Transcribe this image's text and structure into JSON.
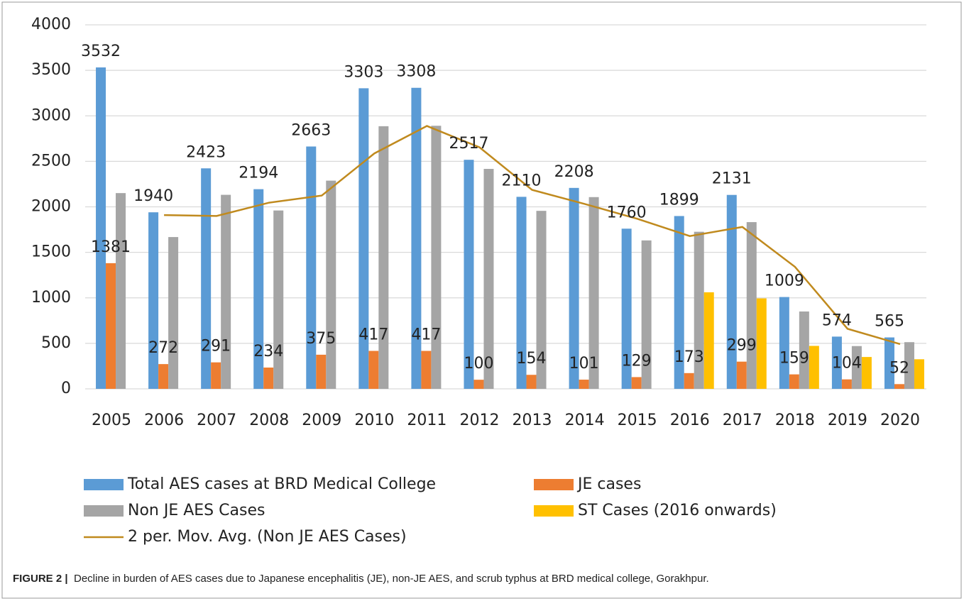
{
  "chart_data": {
    "type": "bar",
    "categories": [
      "2005",
      "2006",
      "2007",
      "2008",
      "2009",
      "2010",
      "2011",
      "2012",
      "2013",
      "2014",
      "2015",
      "2016",
      "2017",
      "2018",
      "2019",
      "2020"
    ],
    "series": [
      {
        "name": "Total AES cases at BRD Medical College",
        "color": "#5b9bd5",
        "values": [
          3532,
          1940,
          2423,
          2194,
          2663,
          3303,
          3308,
          2517,
          2110,
          2208,
          1760,
          1899,
          2131,
          1009,
          574,
          565
        ],
        "labels": true
      },
      {
        "name": "JE cases",
        "color": "#ed7d31",
        "values": [
          1381,
          272,
          291,
          234,
          375,
          417,
          417,
          100,
          154,
          101,
          129,
          173,
          299,
          159,
          104,
          52
        ],
        "labels": true
      },
      {
        "name": "Non JE AES Cases",
        "color": "#a5a5a5",
        "values": [
          2151,
          1668,
          2132,
          1960,
          2288,
          2886,
          2891,
          2417,
          1956,
          2107,
          1631,
          1726,
          1832,
          850,
          470,
          513
        ]
      },
      {
        "name": "ST Cases (2016 onwards)",
        "color": "#ffc000",
        "values": [
          null,
          null,
          null,
          null,
          null,
          null,
          null,
          null,
          null,
          null,
          null,
          1061,
          994,
          472,
          350,
          325
        ]
      },
      {
        "name": "2 per. Mov. Avg. (Non JE AES Cases)",
        "color": "#c08a1e",
        "type": "line",
        "values": [
          null,
          1909.5,
          1900,
          2046,
          2124,
          2587,
          2888.5,
          2654,
          2186.5,
          2031.5,
          1869,
          1678.5,
          1779,
          1341,
          660,
          491.5
        ]
      }
    ],
    "ylim": [
      0,
      4000
    ],
    "yticks": [
      0,
      500,
      1000,
      1500,
      2000,
      2500,
      3000,
      3500,
      4000
    ],
    "grid": true,
    "legend": "bottom",
    "caption_label": "FIGURE 2 |",
    "caption_text": "Decline in burden of AES cases due to Japanese encephalitis (JE), non-JE AES, and scrub typhus at BRD medical college, Gorakhpur."
  }
}
